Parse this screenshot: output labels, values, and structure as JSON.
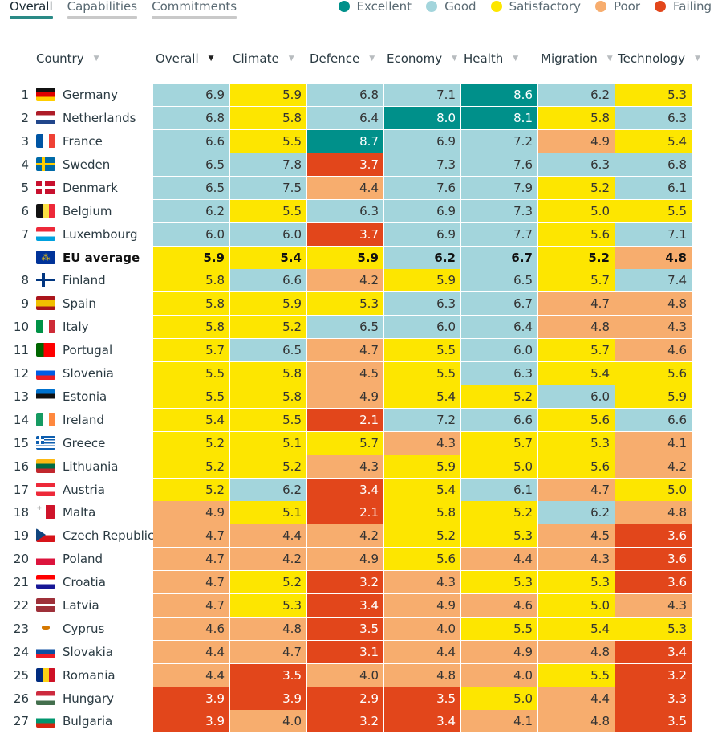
{
  "tabs": [
    {
      "label": "Overall",
      "active": true
    },
    {
      "label": "Capabilities",
      "active": false
    },
    {
      "label": "Commitments",
      "active": false
    }
  ],
  "legend": [
    {
      "label": "Excellent",
      "color": "#00908a"
    },
    {
      "label": "Good",
      "color": "#a3d5dc"
    },
    {
      "label": "Satisfactory",
      "color": "#fde600"
    },
    {
      "label": "Poor",
      "color": "#f7ad6e"
    },
    {
      "label": "Failing",
      "color": "#e2461b"
    }
  ],
  "columns": [
    {
      "label": "Country",
      "sorted": false
    },
    {
      "label": "Overall",
      "sorted": true
    },
    {
      "label": "Climate",
      "sorted": false
    },
    {
      "label": "Defence",
      "sorted": false
    },
    {
      "label": "Economy",
      "sorted": false
    },
    {
      "label": "Health",
      "sorted": false
    },
    {
      "label": "Migration",
      "sorted": false
    },
    {
      "label": "Technology",
      "sorted": false
    }
  ],
  "rows": [
    {
      "rank": "1",
      "country": "Germany",
      "flag": "de",
      "values": [
        [
          "6.9",
          "G"
        ],
        [
          "5.9",
          "S"
        ],
        [
          "6.8",
          "G"
        ],
        [
          "7.1",
          "G"
        ],
        [
          "8.6",
          "E"
        ],
        [
          "6.2",
          "G"
        ],
        [
          "5.3",
          "S"
        ]
      ]
    },
    {
      "rank": "2",
      "country": "Netherlands",
      "flag": "nl",
      "values": [
        [
          "6.8",
          "G"
        ],
        [
          "5.8",
          "S"
        ],
        [
          "6.4",
          "G"
        ],
        [
          "8.0",
          "E"
        ],
        [
          "8.1",
          "E"
        ],
        [
          "5.8",
          "S"
        ],
        [
          "6.3",
          "G"
        ]
      ]
    },
    {
      "rank": "3",
      "country": "France",
      "flag": "fr",
      "values": [
        [
          "6.6",
          "G"
        ],
        [
          "5.5",
          "S"
        ],
        [
          "8.7",
          "E"
        ],
        [
          "6.9",
          "G"
        ],
        [
          "7.2",
          "G"
        ],
        [
          "4.9",
          "P"
        ],
        [
          "5.4",
          "S"
        ]
      ]
    },
    {
      "rank": "4",
      "country": "Sweden",
      "flag": "se",
      "values": [
        [
          "6.5",
          "G"
        ],
        [
          "7.8",
          "G"
        ],
        [
          "3.7",
          "F"
        ],
        [
          "7.3",
          "G"
        ],
        [
          "7.6",
          "G"
        ],
        [
          "6.3",
          "G"
        ],
        [
          "6.8",
          "G"
        ]
      ]
    },
    {
      "rank": "5",
      "country": "Denmark",
      "flag": "dk",
      "values": [
        [
          "6.5",
          "G"
        ],
        [
          "7.5",
          "G"
        ],
        [
          "4.4",
          "P"
        ],
        [
          "7.6",
          "G"
        ],
        [
          "7.9",
          "G"
        ],
        [
          "5.2",
          "S"
        ],
        [
          "6.1",
          "G"
        ]
      ]
    },
    {
      "rank": "6",
      "country": "Belgium",
      "flag": "be",
      "values": [
        [
          "6.2",
          "G"
        ],
        [
          "5.5",
          "S"
        ],
        [
          "6.3",
          "G"
        ],
        [
          "6.9",
          "G"
        ],
        [
          "7.3",
          "G"
        ],
        [
          "5.0",
          "S"
        ],
        [
          "5.5",
          "S"
        ]
      ]
    },
    {
      "rank": "7",
      "country": "Luxembourg",
      "flag": "lu",
      "values": [
        [
          "6.0",
          "G"
        ],
        [
          "6.0",
          "G"
        ],
        [
          "3.7",
          "F"
        ],
        [
          "6.9",
          "G"
        ],
        [
          "7.7",
          "G"
        ],
        [
          "5.6",
          "S"
        ],
        [
          "7.1",
          "G"
        ]
      ]
    },
    {
      "rank": "",
      "country": "EU average",
      "flag": "eu",
      "bold": true,
      "values": [
        [
          "5.9",
          "S"
        ],
        [
          "5.4",
          "S"
        ],
        [
          "5.9",
          "S"
        ],
        [
          "6.2",
          "G"
        ],
        [
          "6.7",
          "G"
        ],
        [
          "5.2",
          "S"
        ],
        [
          "4.8",
          "P"
        ]
      ]
    },
    {
      "rank": "8",
      "country": "Finland",
      "flag": "fi",
      "values": [
        [
          "5.8",
          "S"
        ],
        [
          "6.6",
          "G"
        ],
        [
          "4.2",
          "P"
        ],
        [
          "5.9",
          "S"
        ],
        [
          "6.5",
          "G"
        ],
        [
          "5.7",
          "S"
        ],
        [
          "7.4",
          "G"
        ]
      ]
    },
    {
      "rank": "9",
      "country": "Spain",
      "flag": "es",
      "values": [
        [
          "5.8",
          "S"
        ],
        [
          "5.9",
          "S"
        ],
        [
          "5.3",
          "S"
        ],
        [
          "6.3",
          "G"
        ],
        [
          "6.7",
          "G"
        ],
        [
          "4.7",
          "P"
        ],
        [
          "4.8",
          "P"
        ]
      ]
    },
    {
      "rank": "10",
      "country": "Italy",
      "flag": "it",
      "values": [
        [
          "5.8",
          "S"
        ],
        [
          "5.2",
          "S"
        ],
        [
          "6.5",
          "G"
        ],
        [
          "6.0",
          "G"
        ],
        [
          "6.4",
          "G"
        ],
        [
          "4.8",
          "P"
        ],
        [
          "4.3",
          "P"
        ]
      ]
    },
    {
      "rank": "11",
      "country": "Portugal",
      "flag": "pt",
      "values": [
        [
          "5.7",
          "S"
        ],
        [
          "6.5",
          "G"
        ],
        [
          "4.7",
          "P"
        ],
        [
          "5.5",
          "S"
        ],
        [
          "6.0",
          "G"
        ],
        [
          "5.7",
          "S"
        ],
        [
          "4.6",
          "P"
        ]
      ]
    },
    {
      "rank": "12",
      "country": "Slovenia",
      "flag": "si",
      "values": [
        [
          "5.5",
          "S"
        ],
        [
          "5.8",
          "S"
        ],
        [
          "4.5",
          "P"
        ],
        [
          "5.5",
          "S"
        ],
        [
          "6.3",
          "G"
        ],
        [
          "5.4",
          "S"
        ],
        [
          "5.6",
          "S"
        ]
      ]
    },
    {
      "rank": "13",
      "country": "Estonia",
      "flag": "ee",
      "values": [
        [
          "5.5",
          "S"
        ],
        [
          "5.8",
          "S"
        ],
        [
          "4.9",
          "P"
        ],
        [
          "5.4",
          "S"
        ],
        [
          "5.2",
          "S"
        ],
        [
          "6.0",
          "G"
        ],
        [
          "5.9",
          "S"
        ]
      ]
    },
    {
      "rank": "14",
      "country": "Ireland",
      "flag": "ie",
      "values": [
        [
          "5.4",
          "S"
        ],
        [
          "5.5",
          "S"
        ],
        [
          "2.1",
          "F"
        ],
        [
          "7.2",
          "G"
        ],
        [
          "6.6",
          "G"
        ],
        [
          "5.6",
          "S"
        ],
        [
          "6.6",
          "G"
        ]
      ]
    },
    {
      "rank": "15",
      "country": "Greece",
      "flag": "gr",
      "values": [
        [
          "5.2",
          "S"
        ],
        [
          "5.1",
          "S"
        ],
        [
          "5.7",
          "S"
        ],
        [
          "4.3",
          "P"
        ],
        [
          "5.7",
          "S"
        ],
        [
          "5.3",
          "S"
        ],
        [
          "4.1",
          "P"
        ]
      ]
    },
    {
      "rank": "16",
      "country": "Lithuania",
      "flag": "lt",
      "values": [
        [
          "5.2",
          "S"
        ],
        [
          "5.2",
          "S"
        ],
        [
          "4.3",
          "P"
        ],
        [
          "5.9",
          "S"
        ],
        [
          "5.0",
          "S"
        ],
        [
          "5.6",
          "S"
        ],
        [
          "4.2",
          "P"
        ]
      ]
    },
    {
      "rank": "17",
      "country": "Austria",
      "flag": "at",
      "values": [
        [
          "5.2",
          "S"
        ],
        [
          "6.2",
          "G"
        ],
        [
          "3.4",
          "F"
        ],
        [
          "5.4",
          "S"
        ],
        [
          "6.1",
          "G"
        ],
        [
          "4.7",
          "P"
        ],
        [
          "5.0",
          "S"
        ]
      ]
    },
    {
      "rank": "18",
      "country": "Malta",
      "flag": "mt",
      "values": [
        [
          "4.9",
          "P"
        ],
        [
          "5.1",
          "S"
        ],
        [
          "2.1",
          "F"
        ],
        [
          "5.8",
          "S"
        ],
        [
          "5.2",
          "S"
        ],
        [
          "6.2",
          "G"
        ],
        [
          "4.8",
          "P"
        ]
      ]
    },
    {
      "rank": "19",
      "country": "Czech Republic",
      "flag": "cz",
      "values": [
        [
          "4.7",
          "P"
        ],
        [
          "4.4",
          "P"
        ],
        [
          "4.2",
          "P"
        ],
        [
          "5.2",
          "S"
        ],
        [
          "5.3",
          "S"
        ],
        [
          "4.5",
          "P"
        ],
        [
          "3.6",
          "F"
        ]
      ]
    },
    {
      "rank": "20",
      "country": "Poland",
      "flag": "pl",
      "values": [
        [
          "4.7",
          "P"
        ],
        [
          "4.2",
          "P"
        ],
        [
          "4.9",
          "P"
        ],
        [
          "5.6",
          "S"
        ],
        [
          "4.4",
          "P"
        ],
        [
          "4.3",
          "P"
        ],
        [
          "3.6",
          "F"
        ]
      ]
    },
    {
      "rank": "21",
      "country": "Croatia",
      "flag": "hr",
      "values": [
        [
          "4.7",
          "P"
        ],
        [
          "5.2",
          "S"
        ],
        [
          "3.2",
          "F"
        ],
        [
          "4.3",
          "P"
        ],
        [
          "5.3",
          "S"
        ],
        [
          "5.3",
          "S"
        ],
        [
          "3.6",
          "F"
        ]
      ]
    },
    {
      "rank": "22",
      "country": "Latvia",
      "flag": "lv",
      "values": [
        [
          "4.7",
          "P"
        ],
        [
          "5.3",
          "S"
        ],
        [
          "3.4",
          "F"
        ],
        [
          "4.9",
          "P"
        ],
        [
          "4.6",
          "P"
        ],
        [
          "5.0",
          "S"
        ],
        [
          "4.3",
          "P"
        ]
      ]
    },
    {
      "rank": "23",
      "country": "Cyprus",
      "flag": "cy",
      "values": [
        [
          "4.6",
          "P"
        ],
        [
          "4.8",
          "P"
        ],
        [
          "3.5",
          "F"
        ],
        [
          "4.0",
          "P"
        ],
        [
          "5.5",
          "S"
        ],
        [
          "5.4",
          "S"
        ],
        [
          "5.3",
          "S"
        ]
      ]
    },
    {
      "rank": "24",
      "country": "Slovakia",
      "flag": "sk",
      "values": [
        [
          "4.4",
          "P"
        ],
        [
          "4.7",
          "P"
        ],
        [
          "3.1",
          "F"
        ],
        [
          "4.4",
          "P"
        ],
        [
          "4.9",
          "P"
        ],
        [
          "4.8",
          "P"
        ],
        [
          "3.4",
          "F"
        ]
      ]
    },
    {
      "rank": "25",
      "country": "Romania",
      "flag": "ro",
      "values": [
        [
          "4.4",
          "P"
        ],
        [
          "3.5",
          "F"
        ],
        [
          "4.0",
          "P"
        ],
        [
          "4.8",
          "P"
        ],
        [
          "4.0",
          "P"
        ],
        [
          "5.5",
          "S"
        ],
        [
          "3.2",
          "F"
        ]
      ]
    },
    {
      "rank": "26",
      "country": "Hungary",
      "flag": "hu",
      "values": [
        [
          "3.9",
          "F"
        ],
        [
          "3.9",
          "F"
        ],
        [
          "2.9",
          "F"
        ],
        [
          "3.5",
          "F"
        ],
        [
          "5.0",
          "S"
        ],
        [
          "4.4",
          "P"
        ],
        [
          "3.3",
          "F"
        ]
      ]
    },
    {
      "rank": "27",
      "country": "Bulgaria",
      "flag": "bg",
      "values": [
        [
          "3.9",
          "F"
        ],
        [
          "4.0",
          "P"
        ],
        [
          "3.2",
          "F"
        ],
        [
          "3.4",
          "F"
        ],
        [
          "4.1",
          "P"
        ],
        [
          "4.8",
          "P"
        ],
        [
          "3.5",
          "F"
        ]
      ]
    }
  ]
}
